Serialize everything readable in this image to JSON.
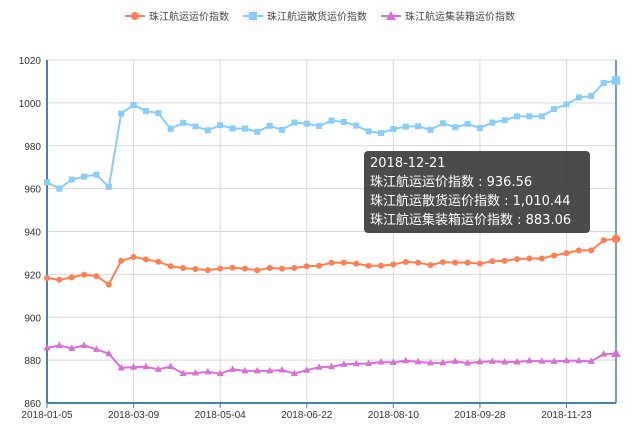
{
  "chart_data": {
    "type": "line",
    "title": "",
    "xlabel": "",
    "ylabel": "",
    "ylim": [
      860,
      1020
    ],
    "yticks": [
      860,
      880,
      900,
      920,
      940,
      960,
      980,
      1000,
      1020
    ],
    "grid": true,
    "legend_position": "top-center",
    "x_tick_labels": [
      "2018-01-05",
      "2018-03-09",
      "2018-05-04",
      "2018-06-22",
      "2018-08-10",
      "2018-09-28",
      "2018-11-23"
    ],
    "point_count": 47,
    "series": [
      {
        "name": "珠江航运运价指数",
        "color": "#ff7f50",
        "marker": "circle",
        "values": [
          918.3,
          917.5,
          918.6,
          919.8,
          919.2,
          915.3,
          926.3,
          928.1,
          927.0,
          925.9,
          923.8,
          923.0,
          922.5,
          922.0,
          922.7,
          923.1,
          922.7,
          921.9,
          923.0,
          922.7,
          923.0,
          923.8,
          924.0,
          925.4,
          925.5,
          925.0,
          924.0,
          924.0,
          924.6,
          925.8,
          925.5,
          924.3,
          925.7,
          925.5,
          925.5,
          925.0,
          926.1,
          926.3,
          927.1,
          927.4,
          927.4,
          928.8,
          929.9,
          931.2,
          931.2,
          935.9,
          936.56
        ]
      },
      {
        "name": "珠江航运散货运价指数",
        "color": "#87cefa",
        "marker": "square",
        "values": [
          963.0,
          960.0,
          964.2,
          965.6,
          966.5,
          960.8,
          995.0,
          999.0,
          996.2,
          995.2,
          987.9,
          990.7,
          989.0,
          987.2,
          989.6,
          988.1,
          988.0,
          986.5,
          989.3,
          987.4,
          990.8,
          990.3,
          989.2,
          991.7,
          991.1,
          989.4,
          986.7,
          985.9,
          987.8,
          988.9,
          989.1,
          987.4,
          990.5,
          988.6,
          990.2,
          988.3,
          990.8,
          991.9,
          993.7,
          993.7,
          993.7,
          997.1,
          999.3,
          1002.5,
          1003.2,
          1009.3,
          1010.44
        ]
      },
      {
        "name": "珠江航运集装箱运价指数",
        "color": "#da70d6",
        "marker": "triangle",
        "values": [
          885.7,
          886.8,
          885.5,
          886.9,
          885.0,
          883.0,
          876.4,
          876.7,
          876.9,
          875.7,
          877.0,
          873.7,
          874.0,
          874.5,
          873.7,
          875.7,
          875.0,
          875.0,
          875.0,
          875.4,
          873.7,
          875.3,
          876.7,
          876.9,
          878.0,
          878.3,
          878.4,
          879.1,
          878.9,
          879.7,
          879.2,
          878.7,
          878.7,
          879.4,
          878.6,
          879.2,
          879.4,
          879.1,
          879.1,
          879.7,
          879.5,
          879.4,
          879.7,
          879.7,
          879.4,
          882.8,
          883.06
        ]
      }
    ],
    "tooltip": {
      "date": "2018-12-21",
      "rows": [
        "珠江航运运价指数 : 936.56",
        "珠江航运散货运价指数 : 1,010.44",
        "珠江航运集装箱运价指数 : 883.06"
      ]
    },
    "axis_color": "#4682b4"
  }
}
